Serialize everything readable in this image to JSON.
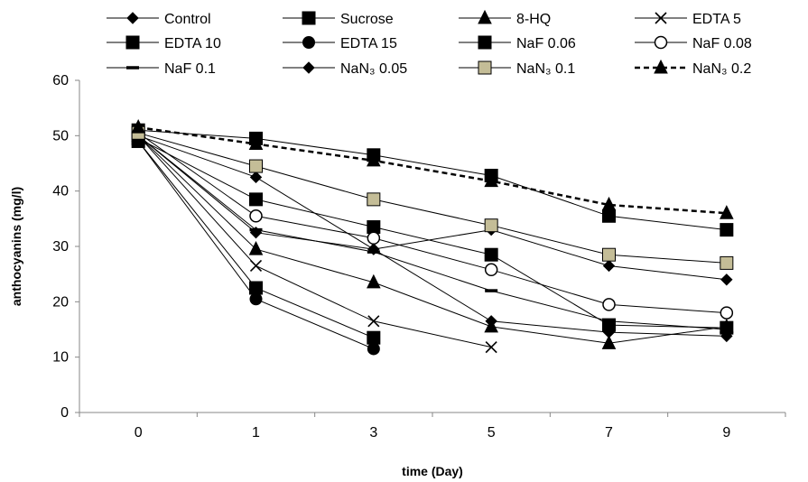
{
  "chart_data": {
    "type": "line",
    "title": "",
    "xlabel": "time (Day)",
    "ylabel": "anthocyanins (mg/l)",
    "categories": [
      "0",
      "1",
      "3",
      "5",
      "7",
      "9"
    ],
    "ylim": [
      0,
      60
    ],
    "yticks": [
      "0",
      "10",
      "20",
      "30",
      "40",
      "50",
      "60"
    ],
    "grid": false,
    "legend_position": "top",
    "series": [
      {
        "name": "Control",
        "marker": "diamond",
        "fill": "#000000",
        "dashed": false,
        "values": [
          50,
          42.5,
          29.5,
          16.5,
          14.5,
          13.8
        ]
      },
      {
        "name": "Sucrose",
        "marker": "square",
        "fill": "#000000",
        "dashed": false,
        "values": [
          49.5,
          38.5,
          33.5,
          28.5,
          15.8,
          15.3
        ]
      },
      {
        "name": "8-HQ",
        "marker": "triangle",
        "fill": "#000000",
        "dashed": false,
        "values": [
          50,
          29.5,
          23.5,
          15.5,
          12.5,
          15.5
        ]
      },
      {
        "name": "EDTA 5",
        "marker": "x",
        "fill": "#000000",
        "dashed": false,
        "values": [
          50,
          26.5,
          16.5,
          11.8,
          null,
          null
        ]
      },
      {
        "name": "EDTA 10",
        "marker": "square",
        "fill": "#000000",
        "dashed": false,
        "values": [
          49,
          22.5,
          13.5,
          null,
          null,
          null
        ]
      },
      {
        "name": "EDTA 15",
        "marker": "circle",
        "fill": "#000000",
        "dashed": false,
        "values": [
          49,
          20.5,
          11.5,
          null,
          null,
          null
        ]
      },
      {
        "name": "NaF 0.06",
        "marker": "square",
        "fill": "#000000",
        "dashed": false,
        "values": [
          51,
          49.5,
          46.5,
          42.8,
          35.5,
          33
        ]
      },
      {
        "name": "NaF 0.08",
        "marker": "circle-open",
        "fill": "#ffffff",
        "dashed": false,
        "values": [
          50.5,
          35.5,
          31.5,
          25.8,
          19.5,
          18
        ]
      },
      {
        "name": "NaF 0.1",
        "marker": "dash",
        "fill": "#000000",
        "dashed": false,
        "values": [
          50,
          33,
          29,
          22,
          16.5,
          15
        ]
      },
      {
        "name": "NaN₃ 0.05",
        "marker": "diamond",
        "fill": "#000000",
        "dashed": false,
        "values": [
          50,
          32.5,
          29.5,
          33,
          26.5,
          24
        ]
      },
      {
        "name": "NaN₃ 0.1",
        "marker": "square",
        "fill": "#c4bd97",
        "dashed": false,
        "values": [
          50.5,
          44.5,
          38.5,
          33.8,
          28.5,
          27
        ]
      },
      {
        "name": "NaN₃ 0.2",
        "marker": "triangle",
        "fill": "#000000",
        "dashed": true,
        "values": [
          51.5,
          48.5,
          45.5,
          41.8,
          37.5,
          36
        ]
      }
    ]
  }
}
